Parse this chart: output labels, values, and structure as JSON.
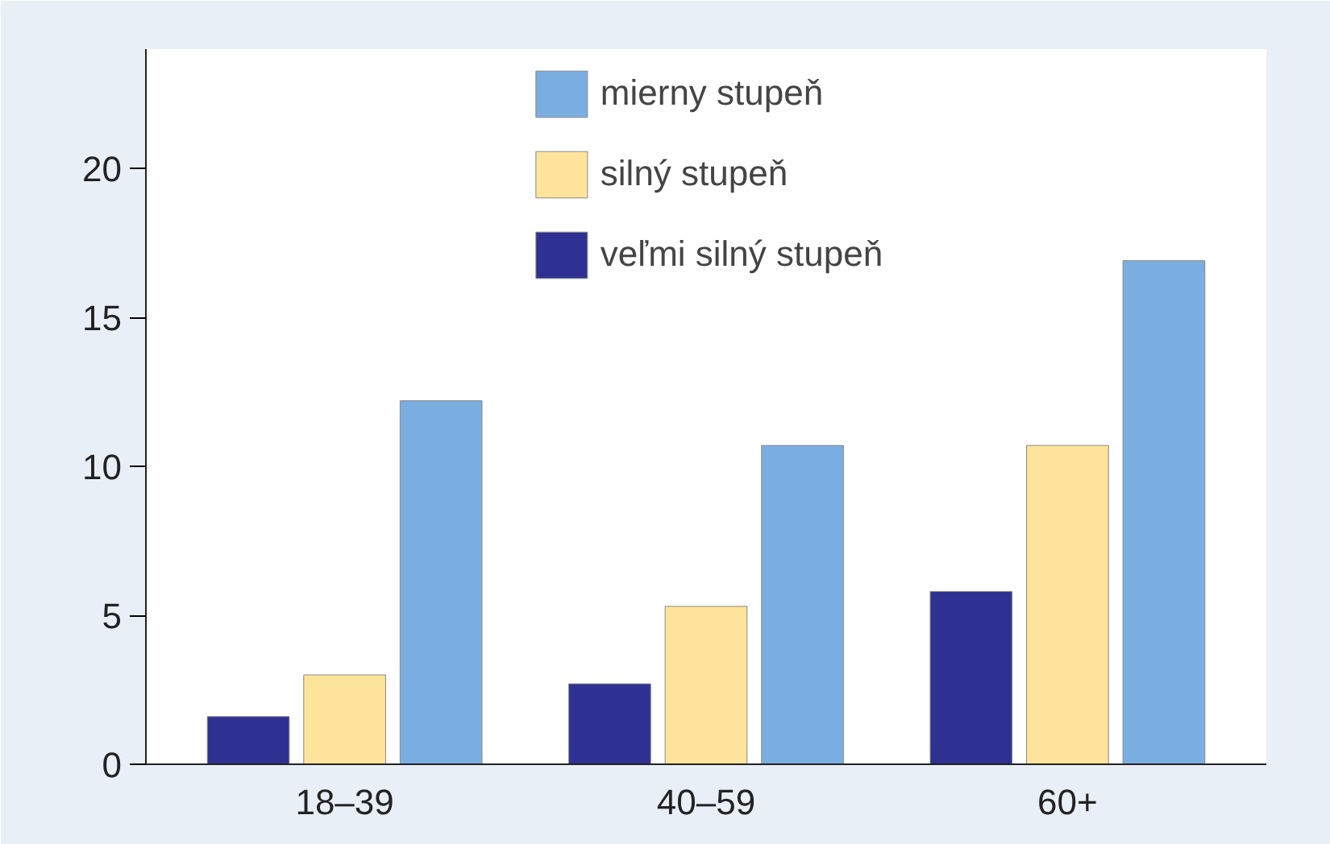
{
  "chart_data": {
    "type": "bar",
    "categories": [
      "18–39",
      "40–59",
      "60+"
    ],
    "series": [
      {
        "name": "veľmi silný stupeň",
        "color": "#2e3192",
        "values": [
          1.6,
          2.7,
          5.8
        ]
      },
      {
        "name": "silný stupeň",
        "color": "#fde49a",
        "values": [
          3.0,
          5.3,
          10.7
        ]
      },
      {
        "name": "mierny stupeň",
        "color": "#7aaee0",
        "values": [
          12.2,
          10.7,
          16.9
        ]
      }
    ],
    "ylim": [
      0,
      24
    ],
    "yticks": [
      0,
      5,
      10,
      15,
      20
    ],
    "grid": false,
    "legend": "top"
  }
}
